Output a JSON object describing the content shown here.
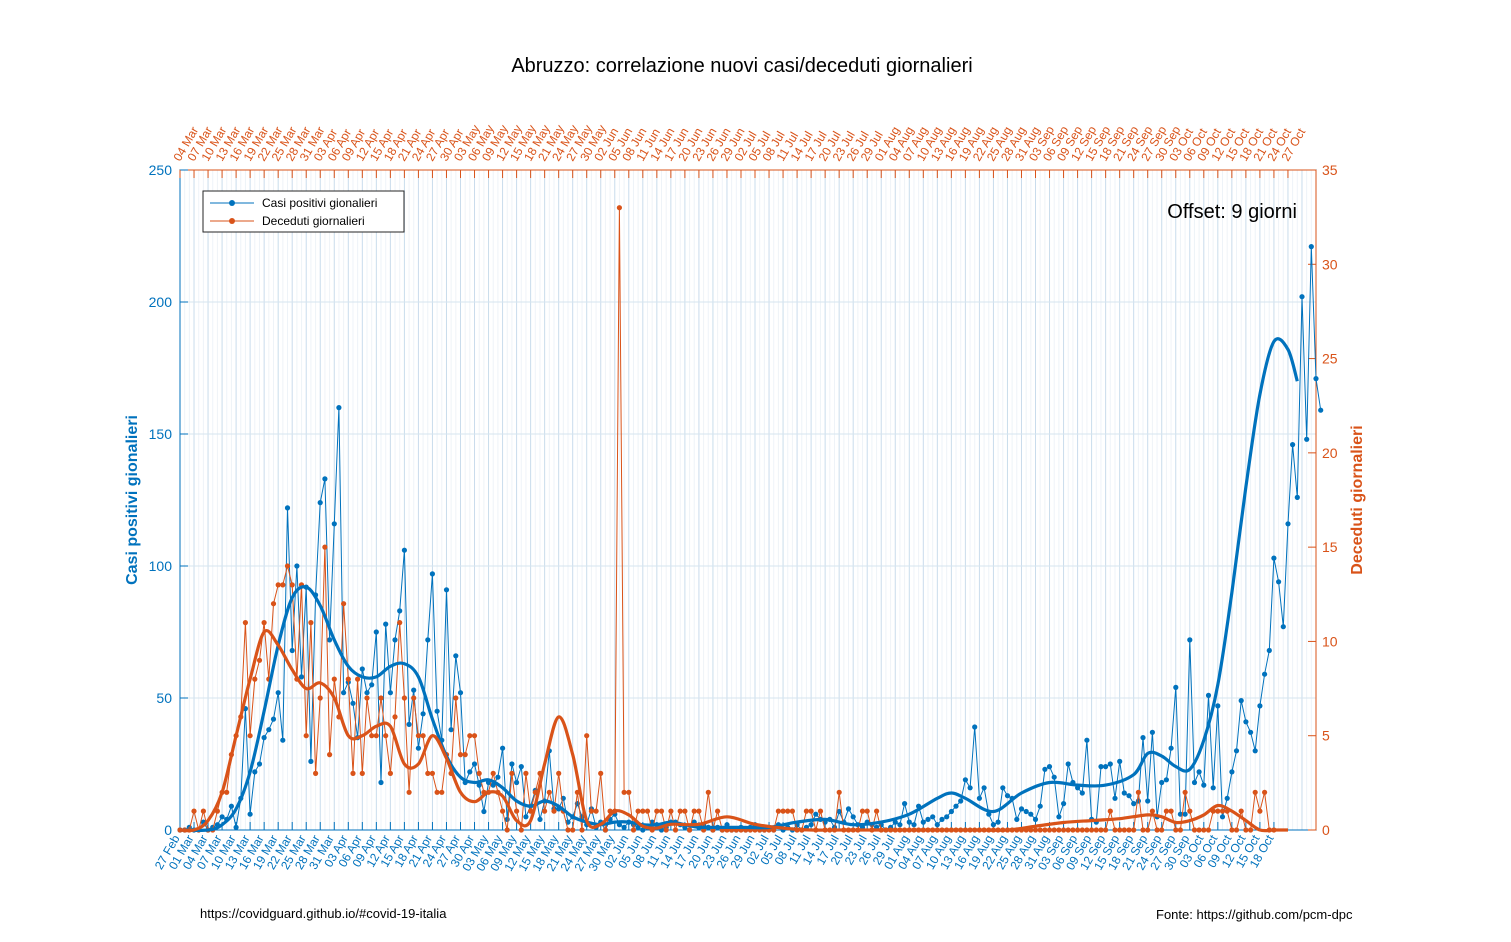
{
  "chart_data": {
    "type": "line",
    "title": "Abruzzo: correlazione nuovi casi/deceduti giornalieri",
    "annotation": "Offset: 9 giorni",
    "xlabel": "",
    "ylabel_left": "Casi positivi gionalieri",
    "ylabel_right": "Deceduti giornalieri",
    "ylim_left": [
      0,
      250
    ],
    "ylim_right": [
      0,
      35
    ],
    "yticks_left": [
      "0",
      "50",
      "100",
      "150",
      "200",
      "250"
    ],
    "yticks_right": [
      "0",
      "5",
      "10",
      "15",
      "20",
      "25",
      "30",
      "35"
    ],
    "grid": true,
    "legend_position": "top-left",
    "colors": {
      "cases": "#0072bd",
      "deaths": "#d95319"
    },
    "x_bottom_labels": [
      "27 Feb",
      "01 Mar",
      "04 Mar",
      "07 Mar",
      "10 Mar",
      "13 Mar",
      "16 Mar",
      "19 Mar",
      "22 Mar",
      "25 Mar",
      "28 Mar",
      "31 Mar",
      "03 Apr",
      "06 Apr",
      "09 Apr",
      "12 Apr",
      "15 Apr",
      "18 Apr",
      "21 Apr",
      "24 Apr",
      "27 Apr",
      "30 Apr",
      "03 May",
      "06 May",
      "09 May",
      "12 May",
      "15 May",
      "18 May",
      "21 May",
      "24 May",
      "27 May",
      "30 May",
      "02 Jun",
      "05 Jun",
      "08 Jun",
      "11 Jun",
      "14 Jun",
      "17 Jun",
      "20 Jun",
      "23 Jun",
      "26 Jun",
      "29 Jun",
      "02 Jul",
      "05 Jul",
      "08 Jul",
      "11 Jul",
      "14 Jul",
      "17 Jul",
      "20 Jul",
      "23 Jul",
      "26 Jul",
      "29 Jul",
      "01 Aug",
      "04 Aug",
      "07 Aug",
      "10 Aug",
      "13 Aug",
      "16 Aug",
      "19 Aug",
      "22 Aug",
      "25 Aug",
      "28 Aug",
      "31 Aug",
      "03 Sep",
      "06 Sep",
      "09 Sep",
      "12 Sep",
      "15 Sep",
      "18 Sep",
      "21 Sep",
      "24 Sep",
      "27 Sep",
      "30 Sep",
      "03 Oct",
      "06 Oct",
      "09 Oct",
      "12 Oct",
      "15 Oct",
      "18 Oct"
    ],
    "x_top_labels": [
      "04 Mar",
      "07 Mar",
      "10 Mar",
      "13 Mar",
      "16 Mar",
      "19 Mar",
      "22 Mar",
      "25 Mar",
      "28 Mar",
      "31 Mar",
      "03 Apr",
      "06 Apr",
      "09 Apr",
      "12 Apr",
      "15 Apr",
      "18 Apr",
      "21 Apr",
      "24 Apr",
      "27 Apr",
      "30 Apr",
      "03 May",
      "06 May",
      "09 May",
      "12 May",
      "15 May",
      "18 May",
      "21 May",
      "24 May",
      "27 May",
      "30 May",
      "02 Jun",
      "05 Jun",
      "08 Jun",
      "11 Jun",
      "14 Jun",
      "17 Jun",
      "20 Jun",
      "23 Jun",
      "26 Jun",
      "29 Jun",
      "02 Jul",
      "05 Jul",
      "08 Jul",
      "11 Jul",
      "14 Jul",
      "17 Jul",
      "20 Jul",
      "23 Jul",
      "26 Jul",
      "29 Jul",
      "01 Aug",
      "04 Aug",
      "07 Aug",
      "10 Aug",
      "13 Aug",
      "16 Aug",
      "19 Aug",
      "22 Aug",
      "25 Aug",
      "28 Aug",
      "31 Aug",
      "03 Sep",
      "06 Sep",
      "09 Sep",
      "12 Sep",
      "15 Sep",
      "18 Sep",
      "21 Sep",
      "24 Sep",
      "27 Sep",
      "30 Sep",
      "03 Oct",
      "06 Oct",
      "09 Oct",
      "12 Oct",
      "15 Oct",
      "18 Oct",
      "21 Oct",
      "24 Oct",
      "27 Oct"
    ],
    "series": [
      {
        "name": "Casi positivi gionalieri",
        "axis": "left",
        "x_start": "27 Feb",
        "values": [
          0,
          0,
          1,
          0,
          0,
          3,
          0,
          1,
          2,
          5,
          4,
          9,
          1,
          12,
          46,
          6,
          22,
          25,
          35,
          38,
          42,
          52,
          34,
          122,
          68,
          100,
          58,
          92,
          26,
          89,
          124,
          133,
          72,
          116,
          160,
          52,
          56,
          48,
          35,
          61,
          52,
          55,
          75,
          18,
          78,
          52,
          72,
          83,
          106,
          40,
          53,
          31,
          44,
          72,
          97,
          45,
          34,
          91,
          38,
          66,
          52,
          18,
          22,
          25,
          17,
          7,
          18,
          17,
          20,
          31,
          4,
          25,
          18,
          24,
          5,
          9,
          15,
          4,
          11,
          30,
          8,
          8,
          12,
          3,
          5,
          10,
          5,
          2,
          8,
          1,
          3,
          0,
          4,
          6,
          2,
          1,
          3,
          2,
          1,
          0,
          1,
          3,
          2,
          0,
          1,
          3,
          3,
          2,
          1,
          0,
          3,
          1,
          2,
          1,
          0,
          1,
          0,
          2,
          0,
          0,
          1,
          0,
          1,
          2,
          0,
          0,
          1,
          0,
          2,
          0,
          1,
          0,
          2,
          0,
          1,
          2,
          6,
          4,
          3,
          4,
          1,
          7,
          3,
          8,
          5,
          2,
          1,
          3,
          2,
          1,
          2,
          0,
          1,
          3,
          2,
          10,
          3,
          2,
          9,
          3,
          4,
          5,
          2,
          4,
          5,
          7,
          9,
          11,
          19,
          16,
          39,
          12,
          16,
          6,
          2,
          3,
          16,
          13,
          12,
          4,
          8,
          7,
          6,
          4,
          9,
          23,
          24,
          20,
          5,
          10,
          25,
          18,
          16,
          14,
          34,
          4,
          3,
          24,
          24,
          25,
          12,
          26,
          14,
          13,
          10,
          11,
          35,
          11,
          37,
          5,
          18,
          19,
          31,
          54,
          6,
          6,
          72,
          18,
          22,
          17,
          51,
          16,
          47,
          5,
          12,
          22,
          30,
          49,
          41,
          37,
          30,
          47,
          59,
          68,
          103,
          94,
          77,
          116,
          146,
          126,
          202,
          148,
          221,
          171,
          159
        ]
      },
      {
        "name": "Deceduti giornalieri",
        "axis": "right",
        "x_start": "04 Mar",
        "values": [
          0,
          0,
          0,
          1,
          0,
          1,
          0,
          0,
          1,
          2,
          2,
          4,
          5,
          6,
          11,
          5,
          8,
          9,
          11,
          8,
          12,
          13,
          13,
          14,
          13,
          8,
          13,
          5,
          11,
          3,
          7,
          15,
          4,
          8,
          6,
          12,
          8,
          3,
          8,
          3,
          7,
          5,
          5,
          7,
          5,
          3,
          6,
          11,
          7,
          2,
          7,
          5,
          5,
          3,
          3,
          2,
          2,
          4,
          3,
          7,
          4,
          4,
          5,
          5,
          3,
          2,
          2,
          3,
          2,
          1,
          0,
          3,
          1,
          0,
          3,
          1,
          2,
          3,
          1,
          2,
          1,
          3,
          1,
          0,
          0,
          2,
          0,
          5,
          1,
          1,
          3,
          0,
          1,
          1,
          33,
          2,
          2,
          0,
          1,
          1,
          1,
          0,
          1,
          1,
          0,
          1,
          0,
          1,
          1,
          0,
          1,
          1,
          0,
          2,
          0,
          1,
          0,
          0,
          0,
          0,
          0,
          0,
          0,
          0,
          0,
          0,
          0,
          0,
          1,
          1,
          1,
          1,
          0,
          0,
          1,
          1,
          0,
          1,
          0,
          0,
          0,
          2,
          0,
          0,
          0,
          0,
          1,
          1,
          0,
          1,
          0,
          0,
          0,
          0,
          0,
          0,
          0,
          0,
          0,
          0,
          0,
          0,
          0,
          0,
          0,
          0,
          0,
          0,
          0,
          0,
          0,
          0,
          0,
          0,
          0,
          0,
          0,
          0,
          0,
          0,
          0,
          0,
          0,
          0,
          0,
          0,
          0,
          0,
          0,
          0,
          0,
          0,
          0,
          0,
          0,
          0,
          0,
          0,
          0,
          1,
          0,
          0,
          0,
          0,
          0,
          2,
          0,
          0,
          1,
          0,
          0,
          1,
          1,
          0,
          0,
          2,
          1,
          0,
          0,
          0,
          0,
          1,
          1,
          1,
          1,
          0,
          0,
          1,
          0,
          0,
          2,
          1,
          2,
          0,
          0
        ]
      }
    ],
    "smoothed": [
      {
        "name": "Casi positivi gionalieri (trend)",
        "knots_x": [
          "27 Feb",
          "04 Mar",
          "07 Mar",
          "10 Mar",
          "13 Mar",
          "16 Mar",
          "19 Mar",
          "22 Mar",
          "25 Mar",
          "28 Mar",
          "31 Mar",
          "03 Apr",
          "06 Apr",
          "09 Apr",
          "12 Apr",
          "15 Apr",
          "18 Apr",
          "21 Apr",
          "24 Apr",
          "27 Apr",
          "30 Apr",
          "03 May",
          "06 May",
          "09 May",
          "12 May",
          "15 May",
          "18 May",
          "21 May",
          "24 May",
          "27 May",
          "30 May",
          "02 Jun",
          "05 Jun",
          "08 Jun",
          "11 Jun",
          "14 Jun",
          "17 Jun",
          "20 Jun",
          "26 Jun",
          "02 Jul",
          "08 Jul",
          "14 Jul",
          "20 Jul",
          "26 Jul",
          "01 Aug",
          "07 Aug",
          "10 Aug",
          "13 Aug",
          "19 Aug",
          "25 Aug",
          "31 Aug",
          "06 Sep",
          "12 Sep",
          "18 Sep",
          "21 Sep",
          "24 Sep",
          "27 Sep",
          "30 Sep",
          "03 Oct",
          "06 Oct",
          "09 Oct",
          "12 Oct",
          "15 Oct",
          "18 Oct",
          "21 Oct",
          "23 Oct"
        ],
        "values": [
          0,
          0,
          2,
          8,
          22,
          45,
          70,
          88,
          92,
          85,
          72,
          62,
          58,
          58,
          62,
          63,
          58,
          42,
          28,
          20,
          18,
          19,
          16,
          11,
          9,
          11,
          9,
          5,
          3,
          2,
          3,
          3,
          2,
          2,
          3,
          2,
          1,
          1,
          1,
          1,
          3,
          4,
          2,
          3,
          6,
          12,
          14,
          12,
          7,
          14,
          18,
          17,
          17,
          21,
          29,
          28,
          24,
          23,
          34,
          55,
          90,
          130,
          165,
          185,
          182,
          170
        ]
      },
      {
        "name": "Deceduti giornalieri (trend)",
        "knots_x": [
          "04 Mar",
          "07 Mar",
          "10 Mar",
          "13 Mar",
          "16 Mar",
          "19 Mar",
          "22 Mar",
          "25 Mar",
          "28 Mar",
          "31 Mar",
          "03 Apr",
          "06 Apr",
          "09 Apr",
          "12 Apr",
          "15 Apr",
          "18 Apr",
          "21 Apr",
          "24 Apr",
          "27 Apr",
          "30 Apr",
          "03 May",
          "06 May",
          "09 May",
          "12 May",
          "15 May",
          "18 May",
          "21 May",
          "24 May",
          "27 May",
          "30 May",
          "02 Jun",
          "05 Jun",
          "08 Jun",
          "11 Jun",
          "14 Jun",
          "17 Jun",
          "23 Jun",
          "29 Jun",
          "05 Jul",
          "11 Jul",
          "17 Jul",
          "23 Jul",
          "29 Jul",
          "04 Aug",
          "10 Aug",
          "16 Aug",
          "22 Aug",
          "28 Aug",
          "03 Sep",
          "09 Sep",
          "15 Sep",
          "21 Sep",
          "27 Sep",
          "30 Sep",
          "03 Oct",
          "06 Oct",
          "09 Oct",
          "12 Oct",
          "15 Oct",
          "18 Oct",
          "21 Oct",
          "24 Oct",
          "27 Oct"
        ],
        "values": [
          0,
          0,
          0.5,
          2,
          5,
          8,
          10.5,
          9.8,
          8.5,
          7.5,
          7.8,
          7,
          5,
          5,
          5.5,
          5.5,
          3.5,
          3.5,
          5,
          3.8,
          2,
          1.5,
          2,
          1.8,
          0.5,
          0.5,
          3.5,
          6,
          4,
          0.5,
          0.3,
          1,
          0.8,
          0.2,
          0.1,
          0.3,
          0.3,
          0.7,
          0.3,
          0.1,
          0,
          0,
          0,
          0,
          0,
          0,
          0,
          0,
          0.2,
          0.4,
          0.5,
          0.6,
          0.8,
          0.7,
          0.4,
          0.5,
          0.8,
          1.3,
          1.0,
          0.5,
          0,
          0,
          0
        ]
      }
    ]
  },
  "legend": {
    "items": [
      {
        "label": "Casi positivi gionalieri"
      },
      {
        "label": "Deceduti giornalieri"
      }
    ]
  },
  "footer": {
    "left": "https://covidguard.github.io/#covid-19-italia",
    "right": "Fonte: https://github.com/pcm-dpc"
  }
}
